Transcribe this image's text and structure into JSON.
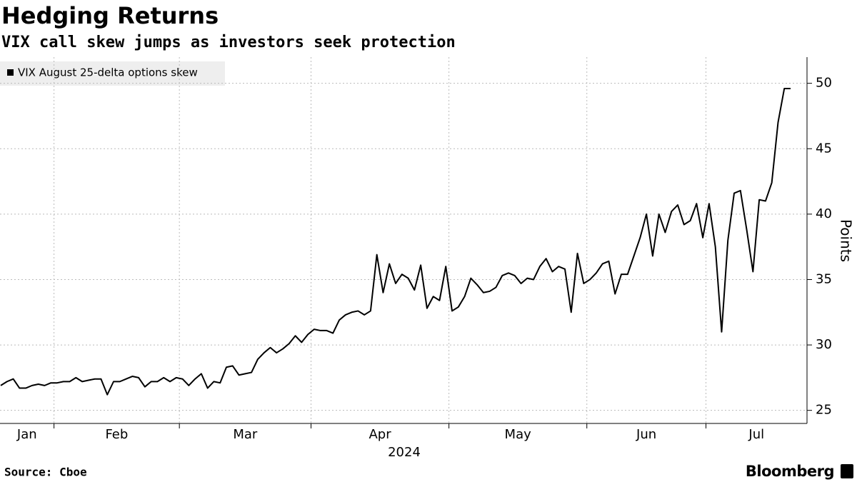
{
  "chart_data": {
    "type": "line",
    "title": "Hedging Returns",
    "subtitle": "VIX call skew jumps as investors seek protection",
    "xlabel": "2024",
    "ylabel": "Points",
    "source": "Source: Cboe",
    "brand": "Bloomberg",
    "legend": "top-left",
    "grid": true,
    "ylim": [
      24,
      52
    ],
    "yticks": [
      25,
      30,
      35,
      40,
      45,
      50
    ],
    "categories": [
      "Jan",
      null,
      null,
      null,
      null,
      null,
      null,
      null,
      null,
      "Feb",
      null,
      null,
      null,
      null,
      null,
      null,
      null,
      null,
      null,
      null,
      null,
      null,
      null,
      null,
      null,
      null,
      null,
      null,
      null,
      "Mar",
      null,
      null,
      null,
      null,
      null,
      null,
      null,
      null,
      null,
      null,
      null,
      null,
      null,
      null,
      null,
      null,
      null,
      null,
      null,
      null,
      "Apr",
      null,
      null,
      null,
      null,
      null,
      null,
      null,
      null,
      null,
      null,
      null,
      null,
      null,
      null,
      null,
      null,
      null,
      null,
      null,
      null,
      null,
      "May",
      null,
      null,
      null,
      null,
      null,
      null,
      null,
      null,
      null,
      null,
      null,
      null,
      null,
      null,
      null,
      null,
      null,
      null,
      null,
      null,
      null,
      "Jun",
      null,
      null,
      null,
      null,
      null,
      null,
      null,
      null,
      null,
      null,
      null,
      null,
      null,
      null,
      null,
      null,
      null,
      null,
      "Jul",
      null,
      null,
      null,
      null,
      null,
      null,
      null,
      null,
      null,
      null,
      null,
      null,
      null
    ],
    "series": [
      {
        "name": "VIX August 25-delta options skew",
        "color": "#000000",
        "values": [
          26.9,
          27.2,
          27.4,
          26.7,
          26.7,
          26.9,
          27.0,
          26.9,
          27.1,
          27.1,
          27.2,
          27.2,
          27.5,
          27.2,
          27.3,
          27.4,
          27.4,
          26.2,
          27.2,
          27.2,
          27.4,
          27.6,
          27.5,
          26.8,
          27.2,
          27.2,
          27.5,
          27.2,
          27.5,
          27.4,
          26.9,
          27.4,
          27.8,
          26.7,
          27.2,
          27.1,
          28.3,
          28.4,
          27.7,
          27.8,
          27.9,
          28.9,
          29.4,
          29.8,
          29.4,
          29.7,
          30.1,
          30.7,
          30.2,
          30.8,
          31.2,
          31.1,
          31.1,
          30.9,
          31.9,
          32.3,
          32.5,
          32.6,
          32.3,
          32.6,
          36.9,
          34.0,
          36.2,
          34.7,
          35.4,
          35.1,
          34.2,
          36.1,
          32.8,
          33.7,
          33.4,
          36.0,
          32.6,
          32.9,
          33.7,
          35.1,
          34.6,
          34.0,
          34.1,
          34.4,
          35.3,
          35.5,
          35.3,
          34.7,
          35.1,
          35.0,
          36.0,
          36.6,
          35.6,
          36.0,
          35.8,
          32.5,
          37.0,
          34.7,
          35.0,
          35.5,
          36.2,
          36.4,
          33.9,
          35.4,
          35.4,
          36.8,
          38.2,
          40.0,
          36.8,
          40.0,
          38.6,
          40.2,
          40.7,
          39.2,
          39.5,
          40.8,
          38.2,
          40.8,
          37.5,
          31.0,
          38.0,
          41.6,
          41.8,
          38.8,
          35.6,
          41.1,
          41.0,
          42.4,
          47.0,
          49.6,
          49.6
        ]
      }
    ]
  }
}
